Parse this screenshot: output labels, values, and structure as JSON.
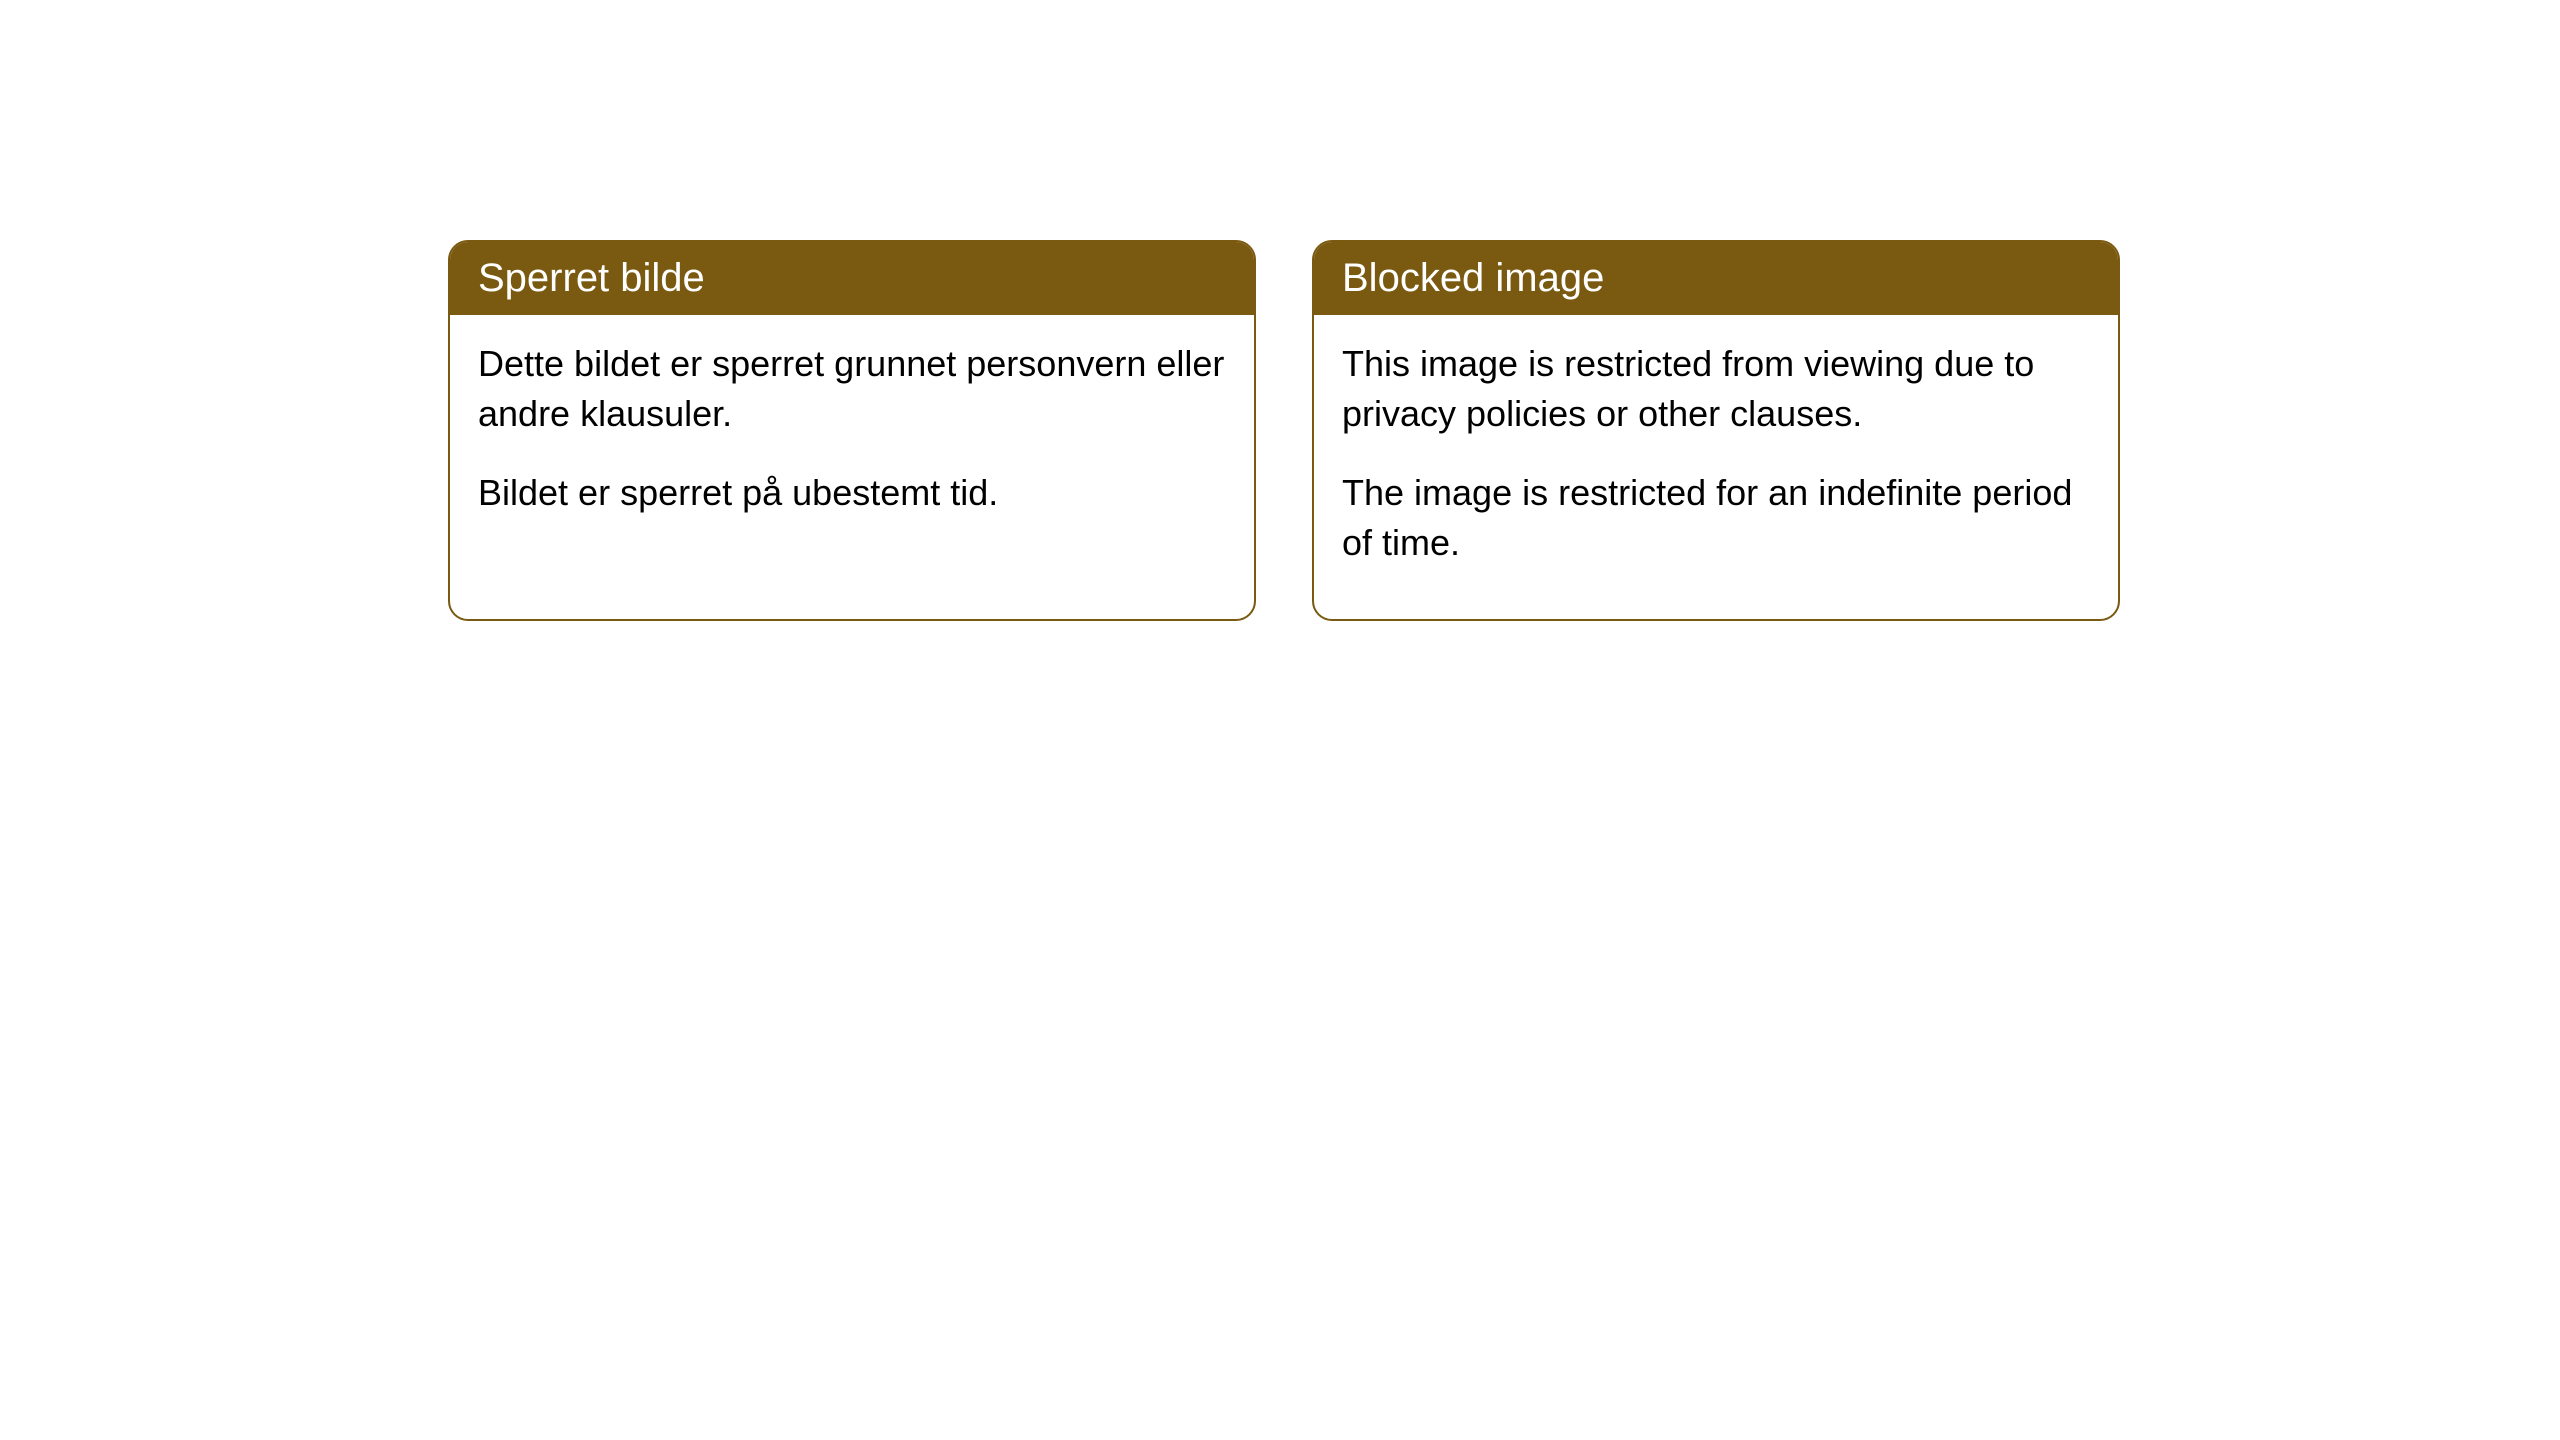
{
  "cards": [
    {
      "title": "Sperret bilde",
      "paragraph1": "Dette bildet er sperret grunnet personvern eller andre klausuler.",
      "paragraph2": "Bildet er sperret på ubestemt tid."
    },
    {
      "title": "Blocked image",
      "paragraph1": "This image is restricted from viewing due to privacy policies or other clauses.",
      "paragraph2": "The image is restricted for an indefinite period of time."
    }
  ],
  "style": {
    "header_bg_color": "#7a5910",
    "header_text_color": "#ffffff",
    "border_color": "#7a5910",
    "card_bg_color": "#ffffff",
    "body_text_color": "#000000",
    "border_radius": 20,
    "header_fontsize": 40,
    "body_fontsize": 36
  }
}
